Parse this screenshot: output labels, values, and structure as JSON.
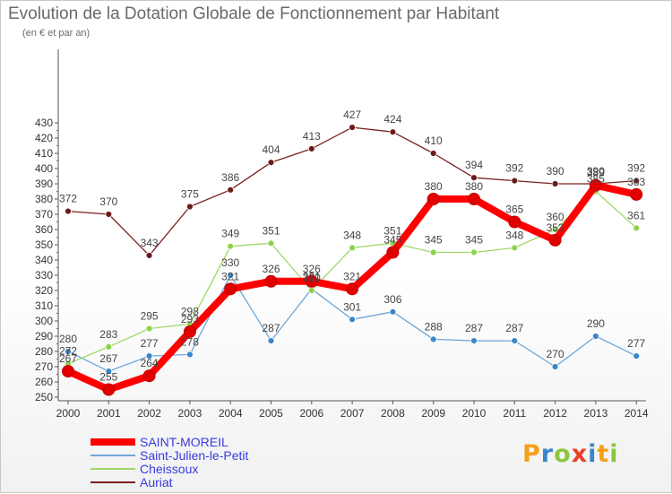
{
  "title": "Evolution de la Dotation Globale de Fonctionnement par Habitant",
  "subtitle": "(en € et par an)",
  "logo": {
    "letters": [
      "P",
      "r",
      "o",
      "x",
      "i",
      "t",
      "i"
    ],
    "colors": [
      "#f5a01a",
      "#3a86c8",
      "#8cc63f",
      "#e8402a",
      "#3a86c8",
      "#f5a01a",
      "#8cc63f"
    ]
  },
  "chart_data": {
    "type": "line",
    "x": [
      "2000",
      "2001",
      "2002",
      "2003",
      "2004",
      "2005",
      "2006",
      "2007",
      "2008",
      "2009",
      "2010",
      "2011",
      "2012",
      "2013",
      "2014"
    ],
    "ylim": [
      250,
      430
    ],
    "yticks": [
      250,
      260,
      270,
      280,
      290,
      300,
      310,
      320,
      330,
      340,
      350,
      360,
      370,
      380,
      390,
      400,
      410,
      420,
      430
    ],
    "grid": false,
    "legend_position": "bottom-left",
    "series": [
      {
        "name": "SAINT-MOREIL",
        "color": "#e00000",
        "line_color": "#ff0000",
        "emphasis": true,
        "values": [
          267,
          255,
          264,
          293,
          321,
          326,
          326,
          321,
          345,
          380,
          380,
          365,
          353,
          389,
          383
        ]
      },
      {
        "name": "Saint-Julien-le-Petit",
        "color": "#3a86c8",
        "line_color": "#6ea6d8",
        "emphasis": false,
        "values": [
          280,
          267,
          277,
          278,
          330,
          287,
          321,
          301,
          306,
          288,
          287,
          287,
          270,
          290,
          277
        ]
      },
      {
        "name": "Cheissoux",
        "color": "#8cd34a",
        "line_color": "#9fd86a",
        "emphasis": false,
        "values": [
          272,
          283,
          295,
          298,
          349,
          351,
          320,
          348,
          351,
          345,
          345,
          348,
          360,
          385,
          361
        ]
      },
      {
        "name": "Auriat",
        "color": "#6b1b1b",
        "line_color": "#7a2020",
        "emphasis": false,
        "values": [
          372,
          370,
          343,
          375,
          386,
          404,
          413,
          427,
          424,
          410,
          394,
          392,
          390,
          390,
          392
        ]
      }
    ]
  }
}
